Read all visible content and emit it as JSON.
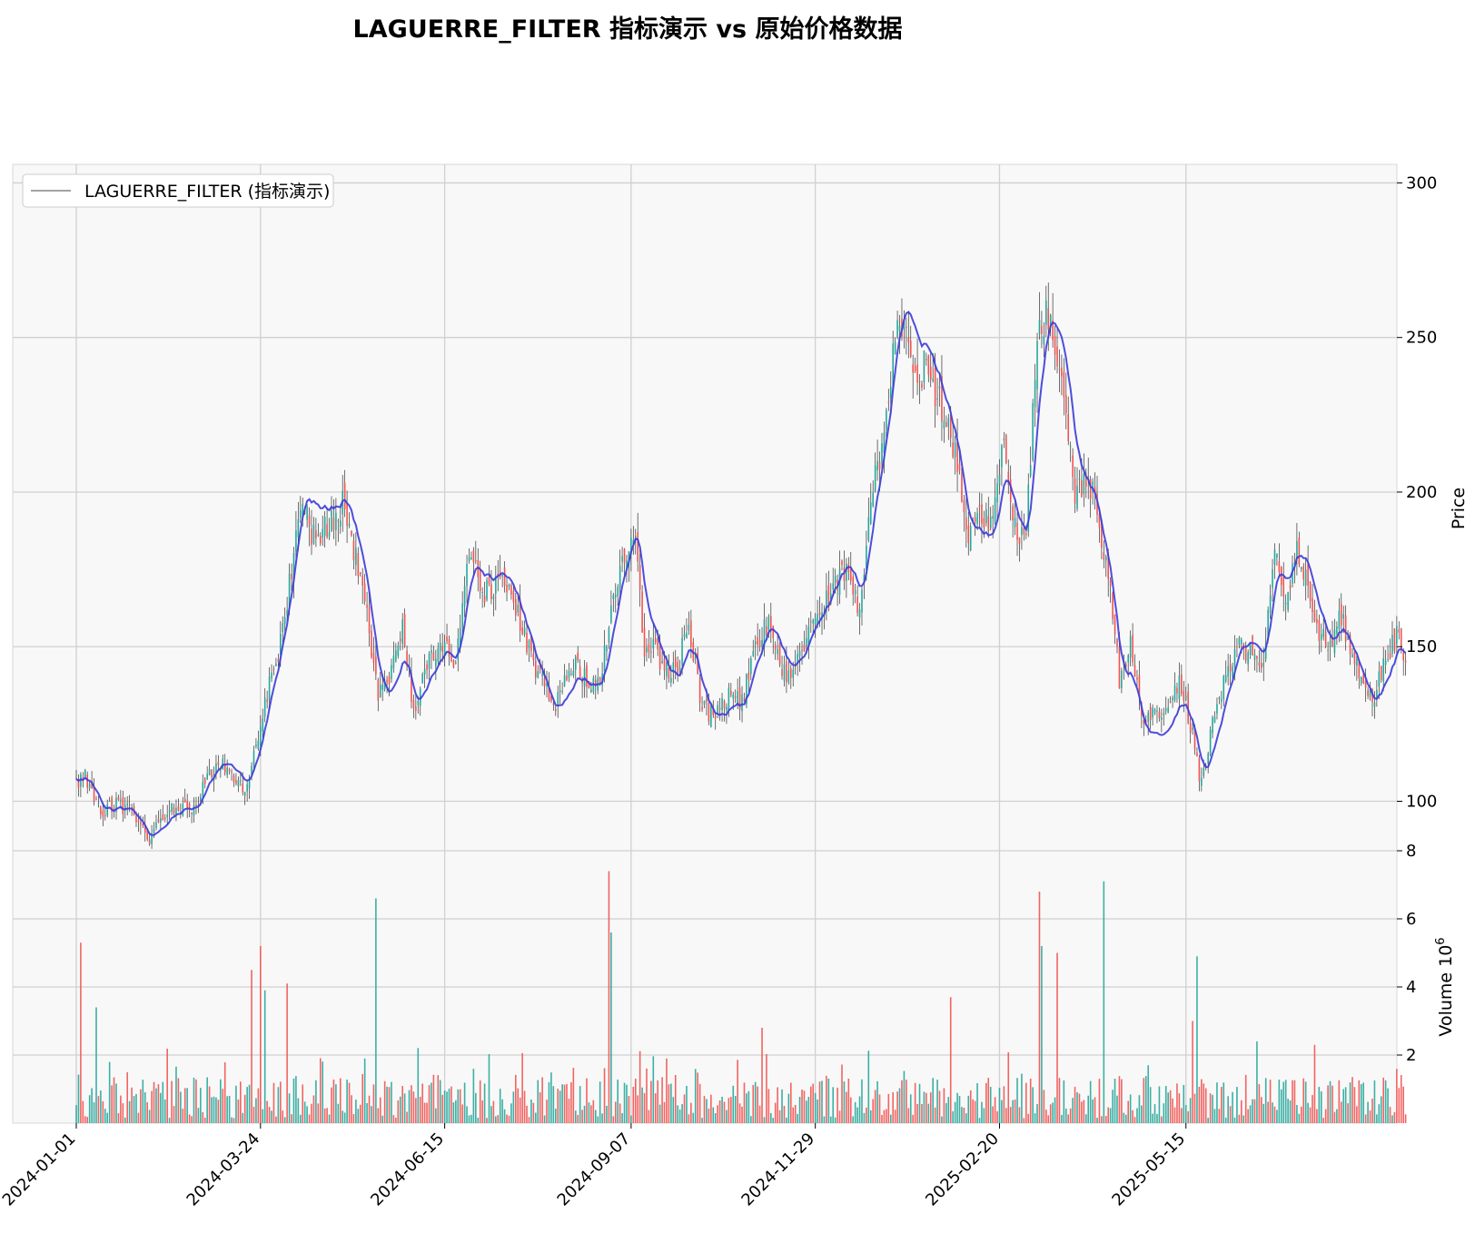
{
  "title": "LAGUERRE_FILTER 指标演示 vs 原始价格数据",
  "legend": {
    "label": "LAGUERRE_FILTER (指标演示)"
  },
  "colors": {
    "up": "#26a69a",
    "down": "#ef5350",
    "filter": "#3a3ad8",
    "grid": "#d0d0d0",
    "panel_bg": "#f8f8f8"
  },
  "chart_data": {
    "type": "candlestick",
    "x_tick_labels": [
      "2024-01-01",
      "2024-03-24",
      "2024-06-15",
      "2024-09-07",
      "2024-11-29",
      "2025-02-20",
      "2025-05-15"
    ],
    "x_range": [
      "2024-01-01",
      "2025-07-20"
    ],
    "price_panel": {
      "ylabel": "Price",
      "ylim": [
        84,
        306
      ],
      "yticks": [
        100,
        150,
        200,
        250,
        300
      ],
      "close_anchors": [
        [
          "2024-01-01",
          105
        ],
        [
          "2024-01-05",
          108
        ],
        [
          "2024-01-12",
          97
        ],
        [
          "2024-01-20",
          99
        ],
        [
          "2024-01-27",
          96
        ],
        [
          "2024-02-03",
          88
        ],
        [
          "2024-02-08",
          93
        ],
        [
          "2024-02-15",
          99
        ],
        [
          "2024-02-22",
          96
        ],
        [
          "2024-03-01",
          109
        ],
        [
          "2024-03-07",
          113
        ],
        [
          "2024-03-13",
          106
        ],
        [
          "2024-03-18",
          103
        ],
        [
          "2024-03-25",
          130
        ],
        [
          "2024-04-01",
          147
        ],
        [
          "2024-04-08",
          180
        ],
        [
          "2024-04-12",
          195
        ],
        [
          "2024-04-18",
          183
        ],
        [
          "2024-04-24",
          190
        ],
        [
          "2024-04-30",
          196
        ],
        [
          "2024-05-06",
          178
        ],
        [
          "2024-05-11",
          160
        ],
        [
          "2024-05-16",
          133
        ],
        [
          "2024-05-21",
          140
        ],
        [
          "2024-05-27",
          155
        ],
        [
          "2024-06-01",
          130
        ],
        [
          "2024-06-08",
          146
        ],
        [
          "2024-06-14",
          152
        ],
        [
          "2024-06-20",
          145
        ],
        [
          "2024-06-26",
          180
        ],
        [
          "2024-07-02",
          168
        ],
        [
          "2024-07-10",
          170
        ],
        [
          "2024-07-16",
          165
        ],
        [
          "2024-07-22",
          150
        ],
        [
          "2024-07-28",
          140
        ],
        [
          "2024-08-03",
          130
        ],
        [
          "2024-08-09",
          142
        ],
        [
          "2024-08-14",
          145
        ],
        [
          "2024-08-19",
          136
        ],
        [
          "2024-08-24",
          140
        ],
        [
          "2024-08-30",
          165
        ],
        [
          "2024-09-04",
          180
        ],
        [
          "2024-09-09",
          186
        ],
        [
          "2024-09-13",
          145
        ],
        [
          "2024-09-17",
          150
        ],
        [
          "2024-09-22",
          142
        ],
        [
          "2024-09-28",
          144
        ],
        [
          "2024-10-03",
          158
        ],
        [
          "2024-10-09",
          130
        ],
        [
          "2024-10-15",
          128
        ],
        [
          "2024-10-21",
          135
        ],
        [
          "2024-10-27",
          132
        ],
        [
          "2024-11-02",
          150
        ],
        [
          "2024-11-08",
          158
        ],
        [
          "2024-11-14",
          140
        ],
        [
          "2024-11-20",
          145
        ],
        [
          "2024-11-26",
          153
        ],
        [
          "2024-12-02",
          162
        ],
        [
          "2024-12-08",
          170
        ],
        [
          "2024-12-14",
          178
        ],
        [
          "2024-12-19",
          160
        ],
        [
          "2024-12-24",
          200
        ],
        [
          "2024-12-29",
          215
        ],
        [
          "2025-01-03",
          245
        ],
        [
          "2025-01-08",
          258
        ],
        [
          "2025-01-12",
          238
        ],
        [
          "2025-01-17",
          240
        ],
        [
          "2025-01-22",
          232
        ],
        [
          "2025-01-27",
          225
        ],
        [
          "2025-02-01",
          210
        ],
        [
          "2025-02-06",
          185
        ],
        [
          "2025-02-11",
          195
        ],
        [
          "2025-02-17",
          190
        ],
        [
          "2025-02-22",
          215
        ],
        [
          "2025-02-27",
          190
        ],
        [
          "2025-03-04",
          185
        ],
        [
          "2025-03-09",
          255
        ],
        [
          "2025-03-15",
          258
        ],
        [
          "2025-03-20",
          235
        ],
        [
          "2025-03-26",
          200
        ],
        [
          "2025-03-31",
          204
        ],
        [
          "2025-04-05",
          195
        ],
        [
          "2025-04-10",
          172
        ],
        [
          "2025-04-15",
          140
        ],
        [
          "2025-04-20",
          150
        ],
        [
          "2025-04-26",
          125
        ],
        [
          "2025-05-01",
          128
        ],
        [
          "2025-05-06",
          130
        ],
        [
          "2025-05-12",
          140
        ],
        [
          "2025-05-17",
          125
        ],
        [
          "2025-05-22",
          105
        ],
        [
          "2025-05-27",
          125
        ],
        [
          "2025-06-02",
          140
        ],
        [
          "2025-06-08",
          150
        ],
        [
          "2025-06-14",
          148
        ],
        [
          "2025-06-19",
          145
        ],
        [
          "2025-06-24",
          178
        ],
        [
          "2025-06-29",
          168
        ],
        [
          "2025-07-04",
          180
        ],
        [
          "2025-07-09",
          172
        ],
        [
          "2025-07-14",
          155
        ],
        [
          "2025-07-19",
          150
        ],
        [
          "2025-07-24",
          160
        ],
        [
          "2025-07-29",
          145
        ],
        [
          "2025-08-03",
          140
        ],
        [
          "2025-08-08",
          133
        ],
        [
          "2025-08-13",
          148
        ],
        [
          "2025-08-18",
          153
        ],
        [
          "2025-08-22",
          148
        ]
      ]
    },
    "volume_panel": {
      "ylabel": "Volume  10^6",
      "ylim": [
        0,
        8
      ],
      "yticks": [
        2,
        4,
        6,
        8
      ],
      "spikes": [
        [
          "2024-01-03",
          5.3,
          "down"
        ],
        [
          "2024-01-10",
          3.4,
          "up"
        ],
        [
          "2024-03-20",
          4.5,
          "down"
        ],
        [
          "2024-03-24",
          5.2,
          "down"
        ],
        [
          "2024-03-26",
          3.9,
          "up"
        ],
        [
          "2024-04-05",
          4.1,
          "down"
        ],
        [
          "2024-05-15",
          6.6,
          "up"
        ],
        [
          "2024-08-28",
          7.4,
          "down"
        ],
        [
          "2024-08-29",
          5.6,
          "up"
        ],
        [
          "2024-11-05",
          2.8,
          "down"
        ],
        [
          "2025-01-29",
          3.7,
          "down"
        ],
        [
          "2025-03-10",
          6.8,
          "down"
        ],
        [
          "2025-03-11",
          5.2,
          "up"
        ],
        [
          "2025-03-18",
          5.0,
          "down"
        ],
        [
          "2025-04-08",
          7.1,
          "up"
        ],
        [
          "2025-05-18",
          3.0,
          "down"
        ],
        [
          "2025-05-20",
          4.9,
          "up"
        ],
        [
          "2025-06-16",
          2.4,
          "up"
        ],
        [
          "2025-07-12",
          2.3,
          "down"
        ]
      ]
    },
    "series": [
      {
        "name": "LAGUERRE_FILTER (指标演示)"
      }
    ]
  }
}
